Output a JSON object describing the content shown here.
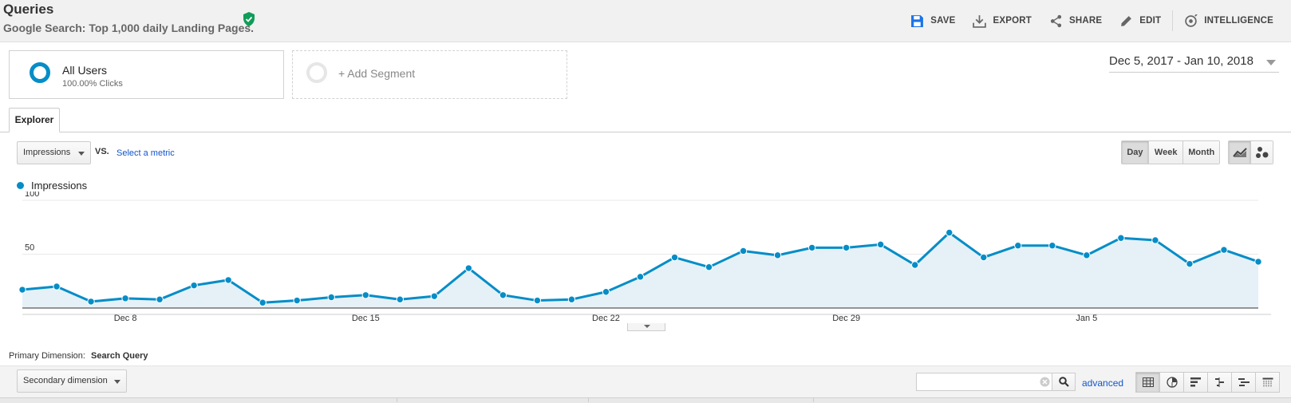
{
  "header": {
    "title": "Queries",
    "subtitle": "Google Search: Top 1,000 daily Landing Pages.",
    "toolbar": [
      {
        "label": "SAVE",
        "icon": "save-icon"
      },
      {
        "label": "EXPORT",
        "icon": "export-icon"
      },
      {
        "label": "SHARE",
        "icon": "share-icon"
      },
      {
        "label": "EDIT",
        "icon": "edit-icon"
      },
      {
        "label": "INTELLIGENCE",
        "icon": "intelligence-icon"
      }
    ]
  },
  "segments": {
    "active": {
      "name": "All Users",
      "sub": "100.00% Clicks"
    },
    "add_label": "+ Add Segment"
  },
  "date_range": "Dec 5, 2017 - Jan 10, 2018",
  "tabs": [
    "Explorer"
  ],
  "controls": {
    "metric": "Impressions",
    "vs": "VS.",
    "select_metric": "Select a metric",
    "granularity": [
      "Day",
      "Week",
      "Month"
    ],
    "granularity_active": "Day",
    "chart_types": [
      "line-chart-icon",
      "motion-chart-icon"
    ]
  },
  "colors": {
    "accent": "#058dc7",
    "fill": "#e5f1f7",
    "link": "#1155cc"
  },
  "chart_data": {
    "type": "line",
    "series": [
      {
        "name": "Impressions",
        "values": [
          17,
          20,
          6,
          9,
          8,
          21,
          26,
          5,
          7,
          10,
          12,
          8,
          11,
          37,
          12,
          7,
          8,
          15,
          29,
          47,
          38,
          53,
          49,
          56,
          56,
          59,
          40,
          70,
          47,
          58,
          58,
          49,
          65,
          63,
          41,
          54,
          43
        ]
      }
    ],
    "x_tick_labels": [
      "Dec 8",
      "Dec 15",
      "Dec 22",
      "Dec 29",
      "Jan 5"
    ],
    "x_tick_index": [
      3,
      10,
      17,
      24,
      31
    ],
    "y_tick_labels": [
      "100",
      "50"
    ],
    "y_ticks": [
      100,
      50
    ],
    "ylim": [
      0,
      100
    ],
    "grid": true
  },
  "primary_dimension": {
    "label": "Primary Dimension:",
    "value": "Search Query"
  },
  "secondary_dimension": "Secondary dimension",
  "search": {
    "placeholder": ""
  },
  "advanced_label": "advanced",
  "table_views": [
    "table-view-icon",
    "pie-view-icon",
    "performance-view-icon",
    "comparison-view-icon",
    "term-cloud-icon",
    "pivot-view-icon"
  ]
}
